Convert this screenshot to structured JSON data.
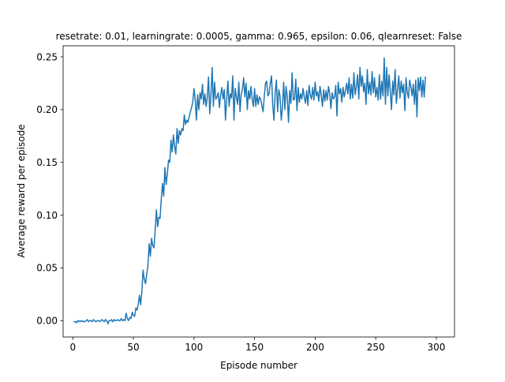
{
  "chart_data": {
    "type": "line",
    "title": "resetrate: 0.01, learningrate: 0.0005, gamma: 0.965, epsilon: 0.06, qlearnreset: False",
    "xlabel": "Episode number",
    "ylabel": "Average reward per episode",
    "xlim": [
      -8,
      315
    ],
    "ylim": [
      -0.0155,
      0.2605
    ],
    "xticks": [
      0,
      50,
      100,
      150,
      200,
      250,
      300
    ],
    "xtick_labels": [
      "0",
      "50",
      "100",
      "150",
      "200",
      "250",
      "300"
    ],
    "yticks": [
      0.0,
      0.05,
      0.1,
      0.15,
      0.2,
      0.25
    ],
    "ytick_labels": [
      "0.00",
      "0.05",
      "0.10",
      "0.15",
      "0.20",
      "0.25"
    ],
    "grid": false,
    "legend": "none",
    "line_color": "#1f77b4",
    "series": [
      {
        "x_start": 1,
        "x_step": 1,
        "values": [
          -0.001,
          -0.001,
          -0.002,
          0.0,
          -0.001,
          0.0,
          -0.001,
          0.0,
          -0.001,
          -0.001,
          0.0,
          0.001,
          -0.001,
          0.0,
          0.0,
          -0.001,
          0.001,
          0.0,
          -0.001,
          0.0,
          0.0,
          -0.001,
          0.0,
          0.001,
          0.0,
          -0.001,
          0.001,
          0.0,
          -0.003,
          0.0,
          0.0,
          0.001,
          -0.001,
          0.001,
          0.0,
          0.0,
          0.001,
          0.0,
          0.0,
          0.002,
          0.0,
          0.001,
          0.0,
          0.007,
          0.002,
          0.0,
          0.003,
          0.002,
          0.008,
          0.005,
          0.004,
          0.012,
          0.01,
          0.016,
          0.024,
          0.015,
          0.028,
          0.048,
          0.039,
          0.035,
          0.044,
          0.052,
          0.073,
          0.061,
          0.078,
          0.071,
          0.069,
          0.086,
          0.105,
          0.089,
          0.098,
          0.097,
          0.115,
          0.13,
          0.118,
          0.145,
          0.129,
          0.139,
          0.152,
          0.15,
          0.171,
          0.16,
          0.176,
          0.165,
          0.158,
          0.182,
          0.168,
          0.18,
          0.176,
          0.182,
          0.18,
          0.195,
          0.186,
          0.19,
          0.188,
          0.193,
          0.198,
          0.202,
          0.207,
          0.22,
          0.21,
          0.19,
          0.214,
          0.2,
          0.216,
          0.21,
          0.224,
          0.205,
          0.215,
          0.203,
          0.212,
          0.231,
          0.196,
          0.214,
          0.24,
          0.203,
          0.226,
          0.21,
          0.212,
          0.216,
          0.202,
          0.214,
          0.221,
          0.21,
          0.219,
          0.19,
          0.21,
          0.227,
          0.203,
          0.215,
          0.211,
          0.232,
          0.19,
          0.22,
          0.212,
          0.205,
          0.226,
          0.198,
          0.215,
          0.219,
          0.23,
          0.212,
          0.225,
          0.2,
          0.218,
          0.21,
          0.222,
          0.21,
          0.203,
          0.22,
          0.203,
          0.214,
          0.205,
          0.212,
          0.21,
          0.204,
          0.198,
          0.212,
          0.225,
          0.227,
          0.213,
          0.215,
          0.225,
          0.232,
          0.204,
          0.19,
          0.216,
          0.228,
          0.198,
          0.219,
          0.213,
          0.19,
          0.202,
          0.226,
          0.2,
          0.222,
          0.212,
          0.188,
          0.218,
          0.206,
          0.235,
          0.209,
          0.21,
          0.229,
          0.199,
          0.221,
          0.207,
          0.215,
          0.21,
          0.22,
          0.212,
          0.206,
          0.218,
          0.204,
          0.223,
          0.214,
          0.21,
          0.221,
          0.209,
          0.226,
          0.213,
          0.217,
          0.208,
          0.222,
          0.214,
          0.203,
          0.219,
          0.208,
          0.218,
          0.209,
          0.222,
          0.215,
          0.201,
          0.216,
          0.21,
          0.212,
          0.223,
          0.194,
          0.226,
          0.215,
          0.22,
          0.207,
          0.221,
          0.212,
          0.218,
          0.225,
          0.215,
          0.23,
          0.21,
          0.224,
          0.211,
          0.235,
          0.214,
          0.222,
          0.233,
          0.21,
          0.24,
          0.222,
          0.232,
          0.217,
          0.225,
          0.205,
          0.238,
          0.215,
          0.226,
          0.214,
          0.236,
          0.216,
          0.23,
          0.212,
          0.221,
          0.209,
          0.233,
          0.21,
          0.227,
          0.213,
          0.249,
          0.205,
          0.24,
          0.213,
          0.233,
          0.218,
          0.2,
          0.227,
          0.214,
          0.238,
          0.206,
          0.219,
          0.232,
          0.211,
          0.227,
          0.216,
          0.224,
          0.199,
          0.23,
          0.216,
          0.211,
          0.228,
          0.222,
          0.213,
          0.224,
          0.205,
          0.228,
          0.193,
          0.23,
          0.218,
          0.231,
          0.212,
          0.228,
          0.212,
          0.231
        ]
      }
    ]
  }
}
